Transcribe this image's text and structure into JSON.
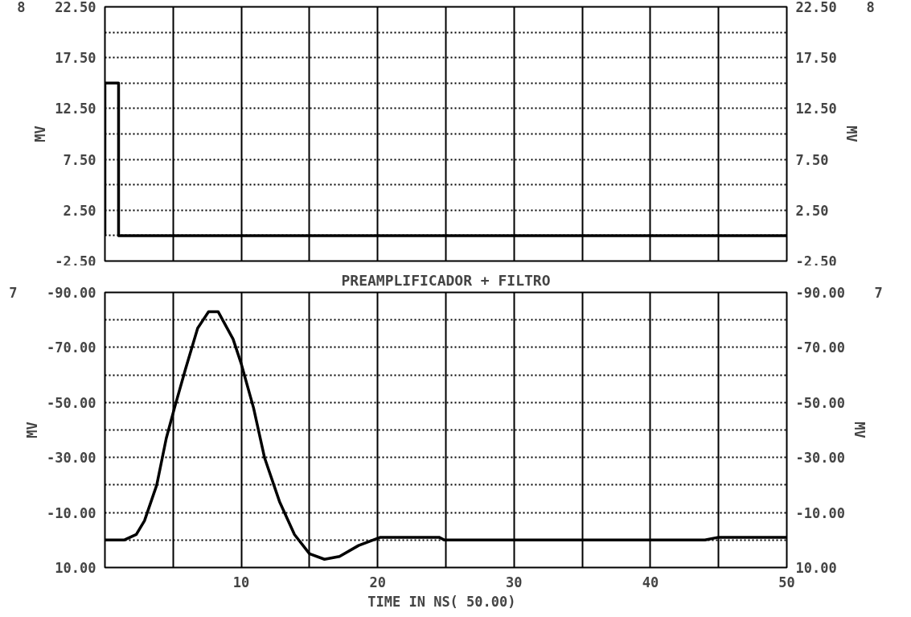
{
  "chart_data": [
    {
      "type": "line",
      "ylabel": "MV",
      "y2label": "MV",
      "annotations": [
        "8"
      ],
      "x": [
        0,
        0,
        1,
        1,
        50
      ],
      "series": [
        {
          "color": "#000000",
          "values": [
            0,
            15,
            15,
            0,
            0
          ]
        }
      ],
      "xlim": [
        0,
        50
      ],
      "xticks": [
        {
          "value": 0,
          "label": null
        },
        {
          "value": 5,
          "label": null
        },
        {
          "value": 10,
          "label": null
        },
        {
          "value": 15,
          "label": null
        },
        {
          "value": 20,
          "label": null
        },
        {
          "value": 25,
          "label": null
        },
        {
          "value": 30,
          "label": null
        },
        {
          "value": 35,
          "label": null
        },
        {
          "value": 40,
          "label": null
        },
        {
          "value": 45,
          "label": null
        },
        {
          "value": 50,
          "label": null
        }
      ],
      "ylim": [
        -2.5,
        22.5
      ],
      "yticks": [
        {
          "value": -2.5,
          "label": "-2.50"
        },
        {
          "value": 0,
          "label": null
        },
        {
          "value": 2.5,
          "label": "2.50"
        },
        {
          "value": 5,
          "label": null
        },
        {
          "value": 7.5,
          "label": "7.50"
        },
        {
          "value": 10,
          "label": null
        },
        {
          "value": 12.5,
          "label": "12.50"
        },
        {
          "value": 15,
          "label": null
        },
        {
          "value": 17.5,
          "label": "17.50"
        },
        {
          "value": 20,
          "label": null
        },
        {
          "value": 22.5,
          "label": "22.50"
        }
      ],
      "y2lim": [
        -2.5,
        22.5
      ],
      "y2ticks": [
        {
          "value": -2.5,
          "label": "-2.50"
        },
        {
          "value": 0,
          "label": null
        },
        {
          "value": 2.5,
          "label": "2.50"
        },
        {
          "value": 5,
          "label": null
        },
        {
          "value": 7.5,
          "label": "7.50"
        },
        {
          "value": 10,
          "label": null
        },
        {
          "value": 12.5,
          "label": "12.50"
        },
        {
          "value": 15,
          "label": null
        },
        {
          "value": 17.5,
          "label": "17.50"
        },
        {
          "value": 20,
          "label": null
        },
        {
          "value": 22.5,
          "label": "22.50"
        }
      ],
      "tick_labels": "y",
      "grid": true
    },
    {
      "type": "line",
      "title": "PREAMPLIFICADOR + FILTRO",
      "xlabel": "TIME IN NS(  50.00)",
      "ylabel": "MV",
      "y2label": "MV",
      "annotations": [
        "7"
      ],
      "x": [
        0,
        1.4,
        2.3,
        2.9,
        3.8,
        4.5,
        5.1,
        5.9,
        6.8,
        7.6,
        8.3,
        9.4,
        10,
        10.9,
        11.7,
        12.8,
        13.9,
        15,
        16.1,
        17.2,
        18.6,
        20.2,
        24.5,
        24.9,
        30,
        44,
        45,
        50
      ],
      "series": [
        {
          "color": "#000000",
          "values": [
            0,
            0,
            -2,
            -7,
            -20,
            -37,
            -48,
            -62,
            -77,
            -83,
            -83,
            -73,
            -64,
            -48,
            -30,
            -14,
            -2,
            5,
            7,
            6,
            2,
            -1,
            -1,
            0,
            0,
            0,
            -1,
            -1
          ]
        }
      ],
      "xlim": [
        0,
        50
      ],
      "xticks": [
        {
          "value": 0,
          "label": null
        },
        {
          "value": 5,
          "label": null
        },
        10,
        {
          "value": 15,
          "label": null
        },
        20,
        {
          "value": 25,
          "label": null
        },
        30,
        {
          "value": 35,
          "label": null
        },
        40,
        {
          "value": 45,
          "label": null
        },
        50
      ],
      "ylim": [
        10,
        -90
      ],
      "yticks": [
        {
          "value": 10,
          "label": "10.00"
        },
        {
          "value": 0,
          "label": null
        },
        {
          "value": -10,
          "label": "-10.00"
        },
        {
          "value": -20,
          "label": null
        },
        {
          "value": -30,
          "label": "-30.00"
        },
        {
          "value": -40,
          "label": null
        },
        {
          "value": -50,
          "label": "-50.00"
        },
        {
          "value": -60,
          "label": null
        },
        {
          "value": -70,
          "label": "-70.00"
        },
        {
          "value": -80,
          "label": null
        },
        {
          "value": -90,
          "label": "-90.00"
        }
      ],
      "y2lim": [
        10,
        -90
      ],
      "y2ticks": [
        {
          "value": 10,
          "label": "10.00"
        },
        {
          "value": 0,
          "label": null
        },
        {
          "value": -10,
          "label": "-10.00"
        },
        {
          "value": -20,
          "label": null
        },
        {
          "value": -30,
          "label": "-30.00"
        },
        {
          "value": -40,
          "label": null
        },
        {
          "value": -50,
          "label": "-50.00"
        },
        {
          "value": -60,
          "label": null
        },
        {
          "value": -70,
          "label": "-70.00"
        },
        {
          "value": -80,
          "label": null
        },
        {
          "value": -90,
          "label": "-90.00"
        }
      ],
      "grid": true
    }
  ]
}
